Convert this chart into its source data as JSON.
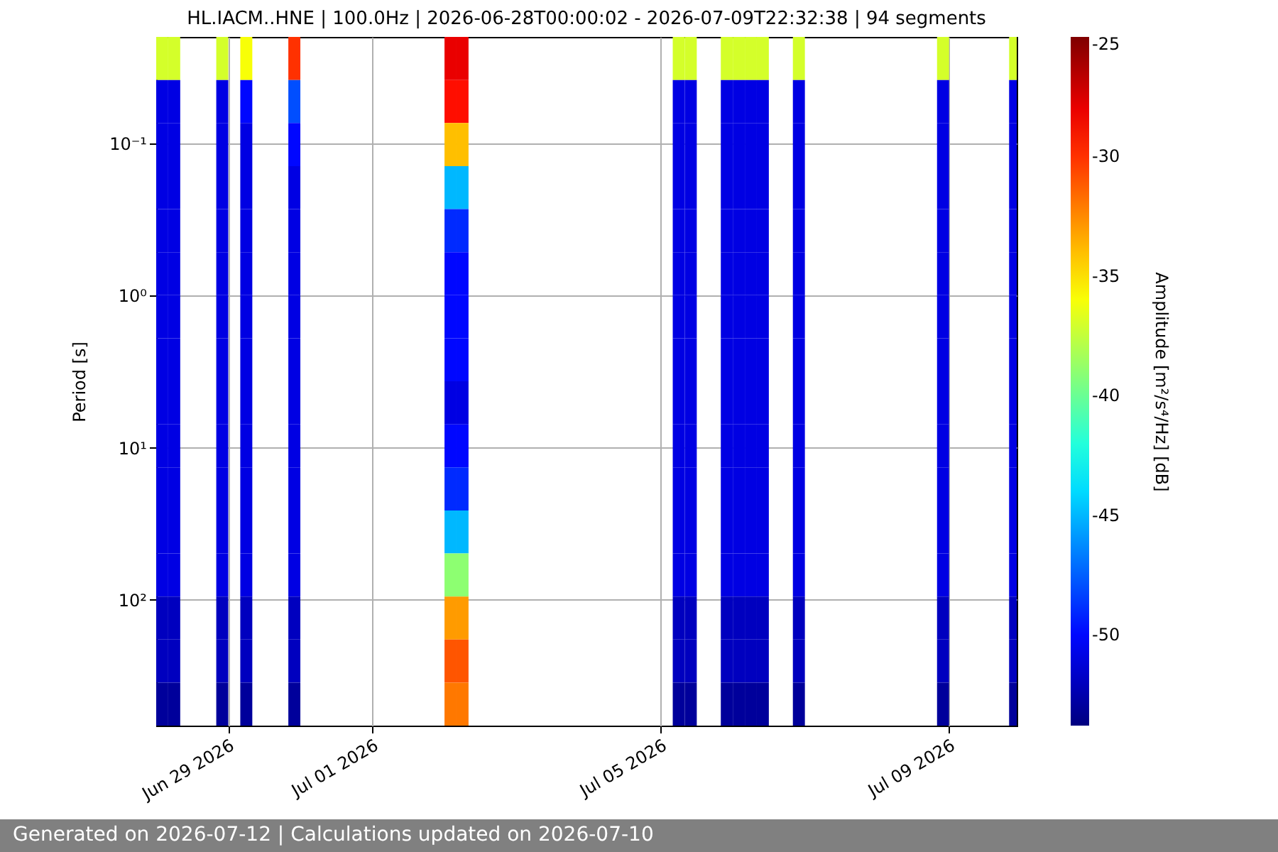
{
  "chart_data": {
    "type": "heatmap",
    "title": "HL.IACM..HNE | 100.0Hz | 2026-06-28T00:00:02 - 2026-07-09T22:32:38 | 94 segments",
    "ylabel": "Period [s]",
    "clabel": "Amplitude [m²/s⁴/Hz] [dB]",
    "annotations": [
      "Generated on 2026-07-12 | Calculations updated on 2026-07-10"
    ],
    "x": [
      "2026-06-28T02:00",
      "2026-06-28T06:00",
      "2026-06-28T10:00",
      "2026-06-28T14:00",
      "2026-06-28T18:00",
      "2026-06-28T22:00",
      "2026-06-29T02:00",
      "2026-06-29T06:00",
      "2026-06-29T10:00",
      "2026-06-29T14:00",
      "2026-06-29T18:00",
      "2026-06-29T22:00",
      "2026-06-30T02:00",
      "2026-06-30T06:00",
      "2026-06-30T10:00",
      "2026-06-30T14:00",
      "2026-06-30T18:00",
      "2026-06-30T22:00",
      "2026-07-01T02:00",
      "2026-07-01T06:00",
      "2026-07-01T10:00",
      "2026-07-01T14:00",
      "2026-07-01T18:00",
      "2026-07-01T22:00",
      "2026-07-02T02:00",
      "2026-07-02T06:00",
      "2026-07-02T10:00",
      "2026-07-02T14:00",
      "2026-07-02T18:00",
      "2026-07-02T22:00",
      "2026-07-03T02:00",
      "2026-07-03T06:00",
      "2026-07-03T10:00",
      "2026-07-03T14:00",
      "2026-07-03T18:00",
      "2026-07-03T22:00",
      "2026-07-04T02:00",
      "2026-07-04T06:00",
      "2026-07-04T10:00",
      "2026-07-04T14:00",
      "2026-07-04T18:00",
      "2026-07-04T22:00",
      "2026-07-05T02:00",
      "2026-07-05T06:00",
      "2026-07-05T10:00",
      "2026-07-05T14:00",
      "2026-07-05T18:00",
      "2026-07-05T22:00",
      "2026-07-06T02:00",
      "2026-07-06T06:00",
      "2026-07-06T10:00",
      "2026-07-06T14:00",
      "2026-07-06T18:00",
      "2026-07-06T22:00",
      "2026-07-07T02:00",
      "2026-07-07T06:00",
      "2026-07-07T10:00",
      "2026-07-07T14:00",
      "2026-07-07T18:00",
      "2026-07-07T22:00",
      "2026-07-08T02:00",
      "2026-07-08T06:00",
      "2026-07-08T10:00",
      "2026-07-08T14:00",
      "2026-07-08T18:00",
      "2026-07-08T22:00",
      "2026-07-09T02:00",
      "2026-07-09T06:00",
      "2026-07-09T10:00",
      "2026-07-09T14:00",
      "2026-07-09T18:00",
      "2026-07-09T22:00"
    ],
    "cells": [
      [
        -37,
        -37,
        null,
        null,
        null,
        -37,
        null,
        -36,
        null,
        null,
        null,
        -30,
        null,
        null,
        null,
        null,
        null,
        null,
        null,
        null,
        null,
        null,
        null,
        null,
        -28,
        -28,
        null,
        null,
        null,
        null,
        null,
        null,
        null,
        null,
        null,
        null,
        null,
        null,
        null,
        null,
        null,
        null,
        null,
        -37,
        -37,
        null,
        null,
        -37,
        -37,
        -37,
        -37,
        null,
        null,
        -37,
        null,
        null,
        null,
        null,
        null,
        null,
        null,
        null,
        null,
        null,
        null,
        -37,
        null,
        null,
        null,
        null,
        null,
        -37
      ],
      [
        -51,
        -51,
        null,
        null,
        null,
        -51,
        null,
        -50,
        null,
        null,
        null,
        -48,
        null,
        null,
        null,
        null,
        null,
        null,
        null,
        null,
        null,
        null,
        null,
        null,
        -29,
        -29,
        null,
        null,
        null,
        null,
        null,
        null,
        null,
        null,
        null,
        null,
        null,
        null,
        null,
        null,
        null,
        null,
        null,
        -51,
        -51,
        null,
        null,
        -51,
        -51,
        -51,
        -51,
        null,
        null,
        -51,
        null,
        null,
        null,
        null,
        null,
        null,
        null,
        null,
        null,
        null,
        null,
        -51,
        null,
        null,
        null,
        null,
        null,
        -51
      ],
      [
        -51,
        -51,
        null,
        null,
        null,
        -51,
        null,
        -51,
        null,
        null,
        null,
        -50,
        null,
        null,
        null,
        null,
        null,
        null,
        null,
        null,
        null,
        null,
        null,
        null,
        -34,
        -34,
        null,
        null,
        null,
        null,
        null,
        null,
        null,
        null,
        null,
        null,
        null,
        null,
        null,
        null,
        null,
        null,
        null,
        -51,
        -51,
        null,
        null,
        -51,
        -51,
        -51,
        -51,
        null,
        null,
        -51,
        null,
        null,
        null,
        null,
        null,
        null,
        null,
        null,
        null,
        null,
        null,
        -51,
        null,
        null,
        null,
        null,
        null,
        -51
      ],
      [
        -51,
        -51,
        null,
        null,
        null,
        -51,
        null,
        -51,
        null,
        null,
        null,
        -51,
        null,
        null,
        null,
        null,
        null,
        null,
        null,
        null,
        null,
        null,
        null,
        null,
        -45,
        -45,
        null,
        null,
        null,
        null,
        null,
        null,
        null,
        null,
        null,
        null,
        null,
        null,
        null,
        null,
        null,
        null,
        null,
        -51,
        -51,
        null,
        null,
        -51,
        -51,
        -51,
        -51,
        null,
        null,
        -51,
        null,
        null,
        null,
        null,
        null,
        null,
        null,
        null,
        null,
        null,
        null,
        -51,
        null,
        null,
        null,
        null,
        null,
        -51
      ],
      [
        -51,
        -51,
        null,
        null,
        null,
        -51,
        null,
        -51,
        null,
        null,
        null,
        -51,
        null,
        null,
        null,
        null,
        null,
        null,
        null,
        null,
        null,
        null,
        null,
        null,
        -49,
        -49,
        null,
        null,
        null,
        null,
        null,
        null,
        null,
        null,
        null,
        null,
        null,
        null,
        null,
        null,
        null,
        null,
        null,
        -51,
        -51,
        null,
        null,
        -51,
        -51,
        -51,
        -51,
        null,
        null,
        -51,
        null,
        null,
        null,
        null,
        null,
        null,
        null,
        null,
        null,
        null,
        null,
        -51,
        null,
        null,
        null,
        null,
        null,
        -51
      ],
      [
        -51,
        -51,
        null,
        null,
        null,
        -51,
        null,
        -51,
        null,
        null,
        null,
        -51,
        null,
        null,
        null,
        null,
        null,
        null,
        null,
        null,
        null,
        null,
        null,
        null,
        -50,
        -50,
        null,
        null,
        null,
        null,
        null,
        null,
        null,
        null,
        null,
        null,
        null,
        null,
        null,
        null,
        null,
        null,
        null,
        -51,
        -51,
        null,
        null,
        -51,
        -51,
        -51,
        -51,
        null,
        null,
        -51,
        null,
        null,
        null,
        null,
        null,
        null,
        null,
        null,
        null,
        null,
        null,
        -51,
        null,
        null,
        null,
        null,
        null,
        -51
      ],
      [
        -51,
        -51,
        null,
        null,
        null,
        -51,
        null,
        -51,
        null,
        null,
        null,
        -51,
        null,
        null,
        null,
        null,
        null,
        null,
        null,
        null,
        null,
        null,
        null,
        null,
        -50,
        -50,
        null,
        null,
        null,
        null,
        null,
        null,
        null,
        null,
        null,
        null,
        null,
        null,
        null,
        null,
        null,
        null,
        null,
        -51,
        -51,
        null,
        null,
        -51,
        -51,
        -51,
        -51,
        null,
        null,
        -51,
        null,
        null,
        null,
        null,
        null,
        null,
        null,
        null,
        null,
        null,
        null,
        -51,
        null,
        null,
        null,
        null,
        null,
        -51
      ],
      [
        -51,
        -51,
        null,
        null,
        null,
        -51,
        null,
        -51,
        null,
        null,
        null,
        -51,
        null,
        null,
        null,
        null,
        null,
        null,
        null,
        null,
        null,
        null,
        null,
        null,
        -50,
        -50,
        null,
        null,
        null,
        null,
        null,
        null,
        null,
        null,
        null,
        null,
        null,
        null,
        null,
        null,
        null,
        null,
        null,
        -51,
        -51,
        null,
        null,
        -51,
        -51,
        -51,
        -51,
        null,
        null,
        -51,
        null,
        null,
        null,
        null,
        null,
        null,
        null,
        null,
        null,
        null,
        null,
        -51,
        null,
        null,
        null,
        null,
        null,
        -51
      ],
      [
        -51,
        -51,
        null,
        null,
        null,
        -51,
        null,
        -51,
        null,
        null,
        null,
        -51,
        null,
        null,
        null,
        null,
        null,
        null,
        null,
        null,
        null,
        null,
        null,
        null,
        -51,
        -51,
        null,
        null,
        null,
        null,
        null,
        null,
        null,
        null,
        null,
        null,
        null,
        null,
        null,
        null,
        null,
        null,
        null,
        -51,
        -51,
        null,
        null,
        -51,
        -51,
        -51,
        -51,
        null,
        null,
        -51,
        null,
        null,
        null,
        null,
        null,
        null,
        null,
        null,
        null,
        null,
        null,
        -51,
        null,
        null,
        null,
        null,
        null,
        -51
      ],
      [
        -51,
        -51,
        null,
        null,
        null,
        -51,
        null,
        -51,
        null,
        null,
        null,
        -51,
        null,
        null,
        null,
        null,
        null,
        null,
        null,
        null,
        null,
        null,
        null,
        null,
        -50,
        -50,
        null,
        null,
        null,
        null,
        null,
        null,
        null,
        null,
        null,
        null,
        null,
        null,
        null,
        null,
        null,
        null,
        null,
        -51,
        -51,
        null,
        null,
        -51,
        -51,
        -51,
        -51,
        null,
        null,
        -51,
        null,
        null,
        null,
        null,
        null,
        null,
        null,
        null,
        null,
        null,
        null,
        -51,
        null,
        null,
        null,
        null,
        null,
        -51
      ],
      [
        -51,
        -51,
        null,
        null,
        null,
        -51,
        null,
        -51,
        null,
        null,
        null,
        -51,
        null,
        null,
        null,
        null,
        null,
        null,
        null,
        null,
        null,
        null,
        null,
        null,
        -49,
        -49,
        null,
        null,
        null,
        null,
        null,
        null,
        null,
        null,
        null,
        null,
        null,
        null,
        null,
        null,
        null,
        null,
        null,
        -51,
        -51,
        null,
        null,
        -51,
        -51,
        -51,
        -51,
        null,
        null,
        -51,
        null,
        null,
        null,
        null,
        null,
        null,
        null,
        null,
        null,
        null,
        null,
        -51,
        null,
        null,
        null,
        null,
        null,
        -51
      ],
      [
        -51,
        -51,
        null,
        null,
        null,
        -51,
        null,
        -51,
        null,
        null,
        null,
        -51,
        null,
        null,
        null,
        null,
        null,
        null,
        null,
        null,
        null,
        null,
        null,
        null,
        -45,
        -45,
        null,
        null,
        null,
        null,
        null,
        null,
        null,
        null,
        null,
        null,
        null,
        null,
        null,
        null,
        null,
        null,
        null,
        -51,
        -51,
        null,
        null,
        -51,
        -51,
        -51,
        -51,
        null,
        null,
        -51,
        null,
        null,
        null,
        null,
        null,
        null,
        null,
        null,
        null,
        null,
        null,
        -51,
        null,
        null,
        null,
        null,
        null,
        -51
      ],
      [
        -51,
        -51,
        null,
        null,
        null,
        -51,
        null,
        -51,
        null,
        null,
        null,
        -51,
        null,
        null,
        null,
        null,
        null,
        null,
        null,
        null,
        null,
        null,
        null,
        null,
        -39,
        -39,
        null,
        null,
        null,
        null,
        null,
        null,
        null,
        null,
        null,
        null,
        null,
        null,
        null,
        null,
        null,
        null,
        null,
        -51,
        -51,
        null,
        null,
        -51,
        -51,
        -51,
        -51,
        null,
        null,
        -51,
        null,
        null,
        null,
        null,
        null,
        null,
        null,
        null,
        null,
        null,
        null,
        -51,
        null,
        null,
        null,
        null,
        null,
        -51
      ],
      [
        -52,
        -52,
        null,
        null,
        null,
        -52,
        null,
        -52,
        null,
        null,
        null,
        -52,
        null,
        null,
        null,
        null,
        null,
        null,
        null,
        null,
        null,
        null,
        null,
        null,
        -33,
        -33,
        null,
        null,
        null,
        null,
        null,
        null,
        null,
        null,
        null,
        null,
        null,
        null,
        null,
        null,
        null,
        null,
        null,
        -52,
        -52,
        null,
        null,
        -52,
        -52,
        -52,
        -52,
        null,
        null,
        -52,
        null,
        null,
        null,
        null,
        null,
        null,
        null,
        null,
        null,
        null,
        null,
        -52,
        null,
        null,
        null,
        null,
        null,
        -52
      ],
      [
        -52,
        -52,
        null,
        null,
        null,
        -52,
        null,
        -52,
        null,
        null,
        null,
        -52,
        null,
        null,
        null,
        null,
        null,
        null,
        null,
        null,
        null,
        null,
        null,
        null,
        -31,
        -31,
        null,
        null,
        null,
        null,
        null,
        null,
        null,
        null,
        null,
        null,
        null,
        null,
        null,
        null,
        null,
        null,
        null,
        -52,
        -52,
        null,
        null,
        -52,
        -52,
        -52,
        -52,
        null,
        null,
        -52,
        null,
        null,
        null,
        null,
        null,
        null,
        null,
        null,
        null,
        null,
        null,
        -52,
        null,
        null,
        null,
        null,
        null,
        -52
      ],
      [
        -53,
        -53,
        null,
        null,
        null,
        -53,
        null,
        -53,
        null,
        null,
        null,
        -53,
        null,
        null,
        null,
        null,
        null,
        null,
        null,
        null,
        null,
        null,
        null,
        null,
        -32,
        -32,
        null,
        null,
        null,
        null,
        null,
        null,
        null,
        null,
        null,
        null,
        null,
        null,
        null,
        null,
        null,
        null,
        null,
        -53,
        -53,
        null,
        null,
        -53,
        -53,
        -53,
        -53,
        null,
        null,
        -53,
        null,
        null,
        null,
        null,
        null,
        null,
        null,
        null,
        null,
        null,
        null,
        -53,
        null,
        null,
        null,
        null,
        null,
        -53
      ]
    ],
    "clim": [
      -53.8,
      -25
    ],
    "cticks": [
      -25,
      -30,
      -35,
      -40,
      -45,
      -50
    ],
    "xlim": [
      "2026-06-28T00:00",
      "2026-07-09T22:32"
    ],
    "xticks": [
      {
        "value": "2026-06-29",
        "label": "Jun 29 2026"
      },
      {
        "value": "2026-07-01",
        "label": "Jul 01 2026"
      },
      {
        "value": "2026-07-05",
        "label": "Jul 05 2026"
      },
      {
        "value": "2026-07-09",
        "label": "Jul 09 2026"
      }
    ],
    "ylim": [
      670,
      0.02
    ],
    "yticks": [
      {
        "value": 0.1,
        "label": "10⁻¹"
      },
      {
        "value": 1,
        "label": "10⁰"
      },
      {
        "value": 10,
        "label": "10¹"
      },
      {
        "value": 100,
        "label": "10²"
      }
    ],
    "log": "y",
    "grid": true
  }
}
